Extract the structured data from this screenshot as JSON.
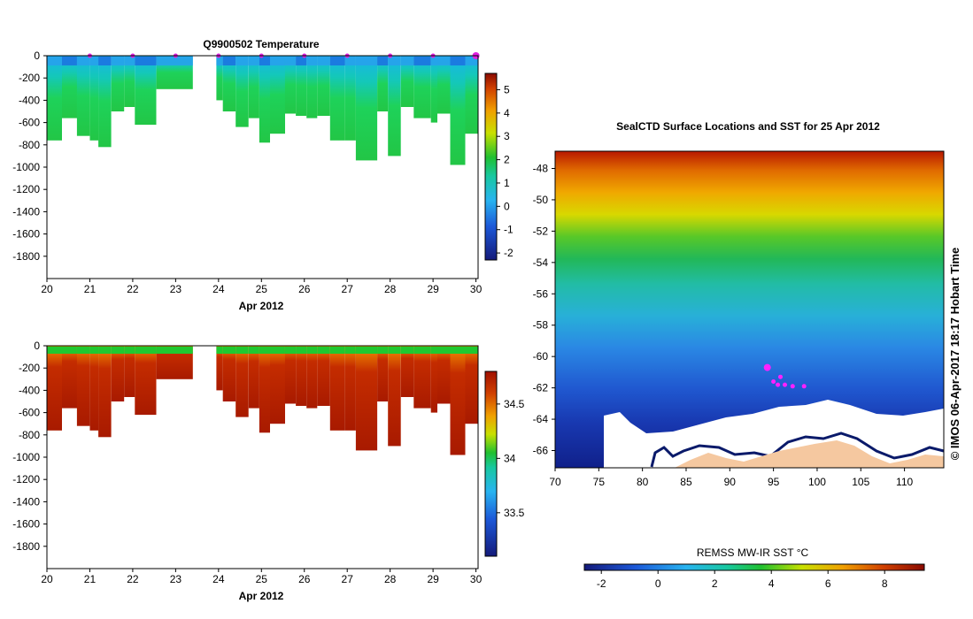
{
  "chart_data": [
    {
      "type": "heatmap",
      "title": "Q9900502  Temperature",
      "xlabel": "Apr 2012",
      "ylabel": "",
      "x_ticks": [
        "20",
        "21",
        "22",
        "23",
        "24",
        "25",
        "26",
        "27",
        "28",
        "29",
        "30"
      ],
      "y_ticks": [
        "0",
        "-200",
        "-400",
        "-600",
        "-800",
        "-1000",
        "-1200",
        "-1400",
        "-1600",
        "-1800"
      ],
      "xlim": [
        20,
        30.05
      ],
      "ylim": [
        -2000,
        0
      ],
      "profile_depths": [
        [
          20.0,
          20.35,
          760
        ],
        [
          20.35,
          20.7,
          560
        ],
        [
          20.7,
          21.0,
          720
        ],
        [
          21.0,
          21.2,
          760
        ],
        [
          21.2,
          21.5,
          820
        ],
        [
          21.5,
          21.8,
          500
        ],
        [
          21.8,
          22.05,
          460
        ],
        [
          22.05,
          22.55,
          620
        ],
        [
          22.55,
          23.4,
          300
        ],
        [
          23.95,
          24.1,
          400
        ],
        [
          24.1,
          24.4,
          500
        ],
        [
          24.4,
          24.7,
          640
        ],
        [
          24.7,
          24.95,
          560
        ],
        [
          24.95,
          25.2,
          780
        ],
        [
          25.2,
          25.55,
          700
        ],
        [
          25.55,
          25.8,
          520
        ],
        [
          25.8,
          26.05,
          540
        ],
        [
          26.05,
          26.3,
          560
        ],
        [
          26.3,
          26.6,
          540
        ],
        [
          26.6,
          26.95,
          760
        ],
        [
          26.95,
          27.2,
          760
        ],
        [
          27.2,
          27.7,
          940
        ],
        [
          27.7,
          27.95,
          500
        ],
        [
          27.95,
          28.25,
          900
        ],
        [
          28.25,
          28.55,
          460
        ],
        [
          28.55,
          28.95,
          560
        ],
        [
          28.95,
          29.1,
          600
        ],
        [
          29.1,
          29.4,
          520
        ],
        [
          29.4,
          29.75,
          980
        ],
        [
          29.75,
          30.05,
          700
        ]
      ],
      "profile_markers": [
        21.0,
        22.0,
        23.0,
        24.0,
        25.0,
        26.0,
        27.0,
        28.0,
        29.0,
        30.0
      ],
      "colorbar": {
        "ticks": [
          "5",
          "4",
          "3",
          "2",
          "1",
          "0",
          "-1",
          "-2"
        ],
        "range": [
          -2.3,
          5.7
        ]
      }
    },
    {
      "type": "heatmap",
      "title": "",
      "xlabel": "Apr 2012",
      "ylabel": "",
      "x_ticks": [
        "20",
        "21",
        "22",
        "23",
        "24",
        "25",
        "26",
        "27",
        "28",
        "29",
        "30"
      ],
      "y_ticks": [
        "0",
        "-200",
        "-400",
        "-600",
        "-800",
        "-1000",
        "-1200",
        "-1400",
        "-1600",
        "-1800"
      ],
      "xlim": [
        20,
        30.05
      ],
      "ylim": [
        -2000,
        0
      ],
      "colorbar": {
        "ticks": [
          "34.5",
          "34",
          "33.5"
        ],
        "range": [
          33.1,
          34.8
        ]
      }
    },
    {
      "type": "heatmap",
      "title": "SealCTD Surface Locations and SST for 25 Apr 2012",
      "xlabel": "",
      "ylabel": "",
      "x_ticks": [
        "70",
        "75",
        "80",
        "85",
        "90",
        "95",
        "100",
        "105",
        "110"
      ],
      "y_ticks": [
        "-48",
        "-50",
        "-52",
        "-54",
        "-56",
        "-58",
        "-60",
        "-62",
        "-64",
        "-66"
      ],
      "xlim": [
        70,
        114.5
      ],
      "ylim": [
        -67.1,
        -46.9
      ],
      "colorbar_label": "REMSS MW-IR SST °C",
      "colorbar": {
        "ticks": [
          "-2",
          "0",
          "2",
          "4",
          "6",
          "8"
        ],
        "range": [
          -2.6,
          9.4
        ]
      },
      "seal_positions": [
        [
          94.3,
          -60.7
        ],
        [
          95.0,
          -61.6
        ],
        [
          95.5,
          -61.8
        ],
        [
          96.3,
          -61.8
        ],
        [
          97.2,
          -61.9
        ],
        [
          98.5,
          -61.9
        ],
        [
          95.8,
          -61.3
        ]
      ],
      "credit": "© IMOS 06-Apr-2017 18:17 Hobart Time"
    }
  ]
}
